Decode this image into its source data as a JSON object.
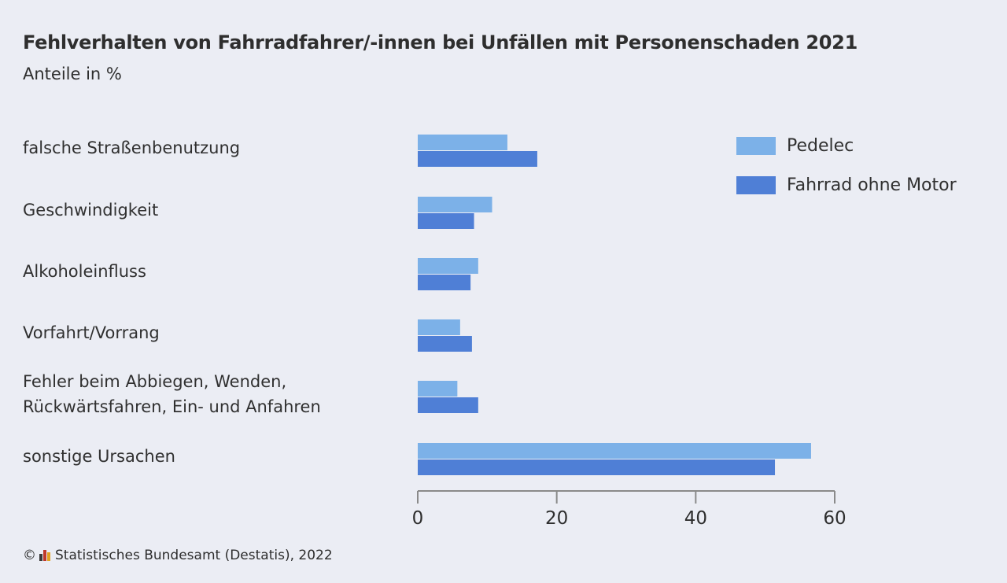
{
  "header": {
    "title": "Fehlverhalten von Fahrradfahrer/-innen bei Unfällen mit Personenschaden 2021",
    "subtitle": "Anteile in %"
  },
  "legend": [
    {
      "label": "Pedelec",
      "color": "#7cb1e8"
    },
    {
      "label": "Fahrrad ohne Motor",
      "color": "#4f7fd6"
    }
  ],
  "footer": {
    "copyright_symbol": "©",
    "source": "Statistisches Bundesamt (Destatis), 2022"
  },
  "chart_data": {
    "type": "bar",
    "orientation": "horizontal",
    "title": "Fehlverhalten von Fahrradfahrer/-innen bei Unfällen mit Personenschaden 2021",
    "subtitle": "Anteile in %",
    "xlabel": "",
    "ylabel": "",
    "categories": [
      "falsche Straßenbenutzung",
      "Geschwindigkeit",
      "Alkoholeinfluss",
      "Vorfahrt/Vorrang",
      "Fehler beim Abbiegen, Wenden,\nRückwärtsfahren, Ein- und Anfahren",
      "sonstige Ursachen"
    ],
    "series": [
      {
        "name": "Pedelec",
        "color": "#7cb1e8",
        "values": [
          12.9,
          10.7,
          8.7,
          6.1,
          5.7,
          56.6
        ]
      },
      {
        "name": "Fahrrad ohne Motor",
        "color": "#4f7fd6",
        "values": [
          17.2,
          8.1,
          7.6,
          7.8,
          8.7,
          51.4
        ]
      }
    ],
    "xlim": [
      0,
      60
    ],
    "xticks": [
      0,
      20,
      40,
      60
    ],
    "xtick_labels": [
      "0",
      "20",
      "40",
      "60"
    ],
    "grid": false,
    "legend_position": "top-right"
  }
}
